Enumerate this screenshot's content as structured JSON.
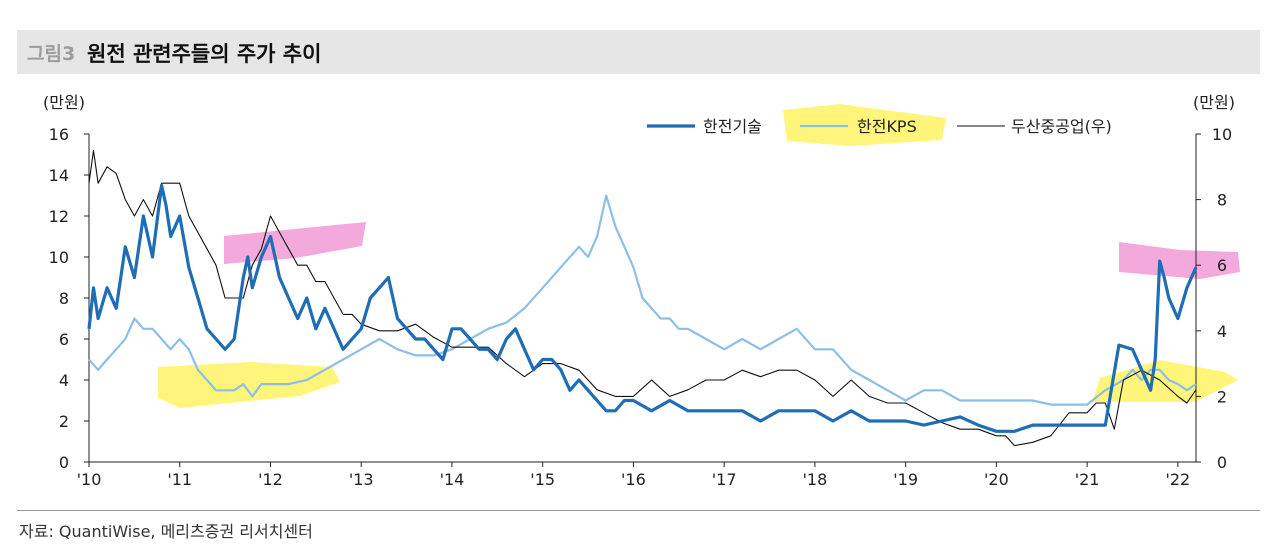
{
  "header": {
    "figure_no": "그림3",
    "title": "원전 관련주들의 주가 추이"
  },
  "source": "자료: QuantiWise, 메리츠증권 리서치센터",
  "colors": {
    "kepco_tech": "#1f6db5",
    "kepco_kps": "#8dbfe6",
    "doosan": "#111111",
    "hl_pink": "#f29ad6",
    "hl_yellow": "#fff35a"
  },
  "chart_data": {
    "type": "line",
    "title": "원전 관련주들의 주가 추이",
    "left_axis": {
      "unit": "(만원)",
      "range": [
        0,
        16
      ],
      "ticks": [
        0,
        2,
        4,
        6,
        8,
        10,
        12,
        14,
        16
      ]
    },
    "right_axis": {
      "unit": "(만원)",
      "range": [
        0,
        10
      ],
      "ticks": [
        0,
        2,
        4,
        6,
        8,
        10
      ]
    },
    "x_range": [
      2010,
      2022.2
    ],
    "x_ticks": [
      {
        "x": 2010,
        "label": "'10"
      },
      {
        "x": 2011,
        "label": "'11"
      },
      {
        "x": 2012,
        "label": "'12"
      },
      {
        "x": 2013,
        "label": "'13"
      },
      {
        "x": 2014,
        "label": "'14"
      },
      {
        "x": 2015,
        "label": "'15"
      },
      {
        "x": 2016,
        "label": "'16"
      },
      {
        "x": 2017,
        "label": "'17"
      },
      {
        "x": 2018,
        "label": "'18"
      },
      {
        "x": 2019,
        "label": "'19"
      },
      {
        "x": 2020,
        "label": "'20"
      },
      {
        "x": 2021,
        "label": "'21"
      },
      {
        "x": 2022,
        "label": "'22"
      }
    ],
    "legend": [
      "한전기술",
      "한전KPS",
      "두산중공업(우)"
    ],
    "series": [
      {
        "name": "한전기술",
        "axis": "left",
        "x": [
          2010.0,
          2010.05,
          2010.1,
          2010.2,
          2010.3,
          2010.4,
          2010.5,
          2010.6,
          2010.7,
          2010.8,
          2010.85,
          2010.9,
          2011.0,
          2011.1,
          2011.2,
          2011.3,
          2011.4,
          2011.5,
          2011.6,
          2011.7,
          2011.75,
          2011.8,
          2011.9,
          2012.0,
          2012.1,
          2012.2,
          2012.3,
          2012.4,
          2012.5,
          2012.6,
          2012.7,
          2012.8,
          2012.9,
          2013.0,
          2013.1,
          2013.2,
          2013.3,
          2013.4,
          2013.5,
          2013.6,
          2013.7,
          2013.8,
          2013.9,
          2014.0,
          2014.1,
          2014.2,
          2014.3,
          2014.4,
          2014.5,
          2014.6,
          2014.7,
          2014.8,
          2014.9,
          2015.0,
          2015.1,
          2015.2,
          2015.3,
          2015.4,
          2015.5,
          2015.6,
          2015.7,
          2015.8,
          2015.9,
          2016.0,
          2016.2,
          2016.4,
          2016.6,
          2016.8,
          2017.0,
          2017.2,
          2017.4,
          2017.6,
          2017.8,
          2018.0,
          2018.2,
          2018.4,
          2018.6,
          2018.8,
          2019.0,
          2019.2,
          2019.4,
          2019.6,
          2019.8,
          2020.0,
          2020.2,
          2020.4,
          2020.6,
          2020.8,
          2021.0,
          2021.2,
          2021.35,
          2021.5,
          2021.6,
          2021.7,
          2021.75,
          2021.8,
          2021.85,
          2021.9,
          2022.0,
          2022.1,
          2022.2
        ],
        "values": [
          6.5,
          8.5,
          7.0,
          8.5,
          7.5,
          10.5,
          9.0,
          12.0,
          10.0,
          13.5,
          12.5,
          11.0,
          12.0,
          9.5,
          8.0,
          6.5,
          6.0,
          5.5,
          6.0,
          9.0,
          10.0,
          8.5,
          10.0,
          11.0,
          9.0,
          8.0,
          7.0,
          8.0,
          6.5,
          7.5,
          6.5,
          5.5,
          6.0,
          6.5,
          8.0,
          8.5,
          9.0,
          7.0,
          6.5,
          6.0,
          6.0,
          5.5,
          5.0,
          6.5,
          6.5,
          6.0,
          5.5,
          5.5,
          5.0,
          6.0,
          6.5,
          5.5,
          4.5,
          5.0,
          5.0,
          4.5,
          3.5,
          4.0,
          3.5,
          3.0,
          2.5,
          2.5,
          3.0,
          3.0,
          2.5,
          3.0,
          2.5,
          2.5,
          2.5,
          2.5,
          2.0,
          2.5,
          2.5,
          2.5,
          2.0,
          2.5,
          2.0,
          2.0,
          2.0,
          1.8,
          2.0,
          2.2,
          1.8,
          1.5,
          1.5,
          1.8,
          1.8,
          1.8,
          1.8,
          1.8,
          5.7,
          5.5,
          4.5,
          3.5,
          5.0,
          9.8,
          9.0,
          8.0,
          7.0,
          8.5,
          9.5
        ]
      },
      {
        "name": "한전KPS",
        "axis": "left",
        "x": [
          2010.0,
          2010.1,
          2010.2,
          2010.3,
          2010.4,
          2010.5,
          2010.6,
          2010.7,
          2010.8,
          2010.9,
          2011.0,
          2011.1,
          2011.2,
          2011.3,
          2011.4,
          2011.5,
          2011.6,
          2011.7,
          2011.8,
          2011.9,
          2012.0,
          2012.2,
          2012.4,
          2012.6,
          2012.8,
          2013.0,
          2013.2,
          2013.4,
          2013.6,
          2013.8,
          2014.0,
          2014.2,
          2014.4,
          2014.6,
          2014.8,
          2015.0,
          2015.2,
          2015.4,
          2015.5,
          2015.6,
          2015.7,
          2015.8,
          2015.9,
          2016.0,
          2016.1,
          2016.2,
          2016.3,
          2016.4,
          2016.5,
          2016.6,
          2016.8,
          2017.0,
          2017.2,
          2017.4,
          2017.6,
          2017.8,
          2018.0,
          2018.2,
          2018.4,
          2018.6,
          2018.8,
          2019.0,
          2019.2,
          2019.4,
          2019.6,
          2019.8,
          2020.0,
          2020.2,
          2020.4,
          2020.6,
          2020.8,
          2021.0,
          2021.2,
          2021.4,
          2021.5,
          2021.6,
          2021.7,
          2021.8,
          2021.9,
          2022.0,
          2022.1,
          2022.2
        ],
        "values": [
          5.0,
          4.5,
          5.0,
          5.5,
          6.0,
          7.0,
          6.5,
          6.5,
          6.0,
          5.5,
          6.0,
          5.5,
          4.5,
          4.0,
          3.5,
          3.5,
          3.5,
          3.8,
          3.2,
          3.8,
          3.8,
          3.8,
          4.0,
          4.5,
          5.0,
          5.5,
          6.0,
          5.5,
          5.2,
          5.2,
          5.5,
          6.0,
          6.5,
          6.8,
          7.5,
          8.5,
          9.5,
          10.5,
          10.0,
          11.0,
          13.0,
          11.5,
          10.5,
          9.5,
          8.0,
          7.5,
          7.0,
          7.0,
          6.5,
          6.5,
          6.0,
          5.5,
          6.0,
          5.5,
          6.0,
          6.5,
          5.5,
          5.5,
          4.5,
          4.0,
          3.5,
          3.0,
          3.5,
          3.5,
          3.0,
          3.0,
          3.0,
          3.0,
          3.0,
          2.8,
          2.8,
          2.8,
          3.5,
          4.0,
          4.5,
          4.0,
          4.5,
          4.5,
          4.0,
          3.8,
          3.5,
          3.8
        ]
      },
      {
        "name": "두산중공업(우)",
        "axis": "right",
        "x": [
          2010.0,
          2010.05,
          2010.1,
          2010.2,
          2010.3,
          2010.4,
          2010.5,
          2010.6,
          2010.7,
          2010.8,
          2010.9,
          2011.0,
          2011.1,
          2011.2,
          2011.3,
          2011.4,
          2011.5,
          2011.6,
          2011.7,
          2011.8,
          2011.9,
          2012.0,
          2012.1,
          2012.2,
          2012.3,
          2012.4,
          2012.5,
          2012.6,
          2012.7,
          2012.8,
          2012.9,
          2013.0,
          2013.2,
          2013.4,
          2013.6,
          2013.8,
          2014.0,
          2014.2,
          2014.4,
          2014.6,
          2014.8,
          2015.0,
          2015.2,
          2015.4,
          2015.6,
          2015.8,
          2016.0,
          2016.2,
          2016.4,
          2016.6,
          2016.8,
          2017.0,
          2017.2,
          2017.4,
          2017.6,
          2017.8,
          2018.0,
          2018.2,
          2018.4,
          2018.6,
          2018.8,
          2019.0,
          2019.2,
          2019.4,
          2019.6,
          2019.8,
          2020.0,
          2020.1,
          2020.2,
          2020.4,
          2020.6,
          2020.8,
          2021.0,
          2021.1,
          2021.2,
          2021.3,
          2021.4,
          2021.6,
          2021.8,
          2022.0,
          2022.1,
          2022.2
        ],
        "values": [
          8.5,
          9.5,
          8.5,
          9.0,
          8.8,
          8.0,
          7.5,
          8.0,
          7.5,
          8.5,
          8.5,
          8.5,
          7.5,
          7.0,
          6.5,
          6.0,
          5.0,
          5.0,
          5.0,
          6.0,
          6.5,
          7.5,
          7.0,
          6.5,
          6.0,
          6.0,
          5.5,
          5.5,
          5.0,
          4.5,
          4.5,
          4.2,
          4.0,
          4.0,
          4.2,
          3.8,
          3.5,
          3.5,
          3.5,
          3.0,
          2.6,
          3.0,
          3.0,
          2.8,
          2.2,
          2.0,
          2.0,
          2.5,
          2.0,
          2.2,
          2.5,
          2.5,
          2.8,
          2.6,
          2.8,
          2.8,
          2.5,
          2.0,
          2.5,
          2.0,
          1.8,
          1.8,
          1.5,
          1.2,
          1.0,
          1.0,
          0.8,
          0.8,
          0.5,
          0.6,
          0.8,
          1.5,
          1.5,
          1.8,
          1.8,
          1.0,
          2.5,
          2.8,
          2.5,
          2.0,
          1.8,
          2.2
        ]
      }
    ]
  }
}
